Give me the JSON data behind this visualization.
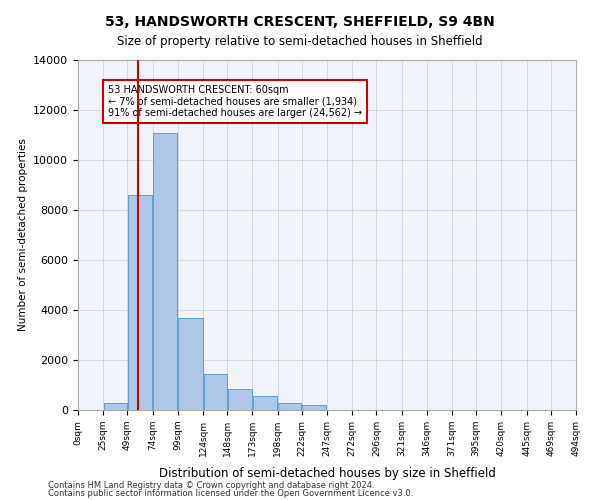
{
  "title_line1": "53, HANDSWORTH CRESCENT, SHEFFIELD, S9 4BN",
  "title_line2": "Size of property relative to semi-detached houses in Sheffield",
  "xlabel": "Distribution of semi-detached houses by size in Sheffield",
  "ylabel": "Number of semi-detached properties",
  "footer_line1": "Contains HM Land Registry data © Crown copyright and database right 2024.",
  "footer_line2": "Contains public sector information licensed under the Open Government Licence v3.0.",
  "property_label": "53 HANDSWORTH CRESCENT: 60sqm",
  "smaller_text": "← 7% of semi-detached houses are smaller (1,934)",
  "larger_text": "91% of semi-detached houses are larger (24,562) →",
  "property_sqm": 60,
  "bin_edges": [
    0,
    25,
    49,
    74,
    99,
    124,
    148,
    173,
    198,
    222,
    247,
    272,
    296,
    321,
    346,
    371,
    395,
    420,
    445,
    469,
    494
  ],
  "bar_heights": [
    0,
    300,
    8600,
    11100,
    3700,
    1450,
    850,
    550,
    300,
    200,
    0,
    0,
    0,
    0,
    0,
    0,
    0,
    0,
    0,
    0
  ],
  "bar_color": "#aec6e8",
  "bar_edge_color": "#5a9fd4",
  "red_line_color": "#cc0000",
  "annotation_box_color": "#cc0000",
  "background_color": "#ffffff",
  "grid_color": "#cccccc",
  "ylim": [
    0,
    14000
  ],
  "yticks": [
    0,
    2000,
    4000,
    6000,
    8000,
    10000,
    12000,
    14000
  ],
  "tick_labels": [
    "0sqm",
    "25sqm",
    "49sqm",
    "74sqm",
    "99sqm",
    "124sqm",
    "148sqm",
    "173sqm",
    "198sqm",
    "222sqm",
    "247sqm",
    "272sqm",
    "296sqm",
    "321sqm",
    "346sqm",
    "371sqm",
    "395sqm",
    "420sqm",
    "445sqm",
    "469sqm",
    "494sqm"
  ]
}
